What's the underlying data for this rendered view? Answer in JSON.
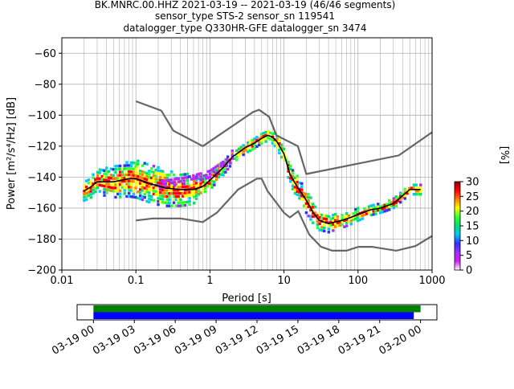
{
  "chart_data": [
    {
      "type": "heatmap",
      "title_lines": [
        "BK.MNRC.00.HHZ   2021-03-19 -- 2021-03-19  (46/46 segments)",
        "sensor_type STS-2 sensor_sn 119541",
        "datalogger_type Q330HR-GFE datalogger_sn 3474"
      ],
      "xlabel": "Period [s]",
      "ylabel": "Power [m²/s⁴/Hz] [dB]",
      "x_scale": "log",
      "xlim": [
        0.01,
        1000
      ],
      "ylim": [
        -200,
        -50
      ],
      "x_ticks": [
        0.01,
        0.1,
        1,
        10,
        100,
        1000
      ],
      "x_tick_labels": [
        "0.01",
        "0.1",
        "1",
        "10",
        "100",
        "1000"
      ],
      "y_ticks": [
        -200,
        -180,
        -160,
        -140,
        -120,
        -100,
        -80,
        -60
      ],
      "y_tick_labels": [
        "−200",
        "−180",
        "−160",
        "−140",
        "−120",
        "−100",
        "−80",
        "−60"
      ],
      "grid": true,
      "noise_models": [
        {
          "model": "high-noise",
          "color": "#666666",
          "points": [
            [
              0.1,
              -91
            ],
            [
              0.22,
              -97
            ],
            [
              0.32,
              -110
            ],
            [
              0.8,
              -120
            ],
            [
              3.8,
              -98
            ],
            [
              4.6,
              -96.5
            ],
            [
              6.3,
              -101
            ],
            [
              7.9,
              -113
            ],
            [
              15.4,
              -120
            ],
            [
              20,
              -138
            ],
            [
              354.8,
              -126
            ],
            [
              1000,
              -111
            ]
          ]
        },
        {
          "model": "low-noise",
          "color": "#666666",
          "points": [
            [
              0.1,
              -168
            ],
            [
              0.17,
              -166.7
            ],
            [
              0.4,
              -166.7
            ],
            [
              0.8,
              -169
            ],
            [
              1.24,
              -163
            ],
            [
              2.4,
              -148
            ],
            [
              4.3,
              -141
            ],
            [
              5,
              -141
            ],
            [
              6,
              -149
            ],
            [
              10,
              -163
            ],
            [
              12,
              -166
            ],
            [
              15.6,
              -162
            ],
            [
              21.9,
              -177
            ],
            [
              31.6,
              -185
            ],
            [
              45,
              -187.5
            ],
            [
              70,
              -187.5
            ],
            [
              101,
              -185
            ],
            [
              154,
              -185
            ],
            [
              328,
              -187.5
            ],
            [
              600,
              -184.5
            ],
            [
              1000,
              -178
            ]
          ]
        }
      ],
      "mode_curve": {
        "color": "#000000",
        "points": [
          [
            0.02,
            -149
          ],
          [
            0.025,
            -146
          ],
          [
            0.03,
            -143
          ],
          [
            0.05,
            -143
          ],
          [
            0.08,
            -141
          ],
          [
            0.1,
            -141
          ],
          [
            0.15,
            -144
          ],
          [
            0.25,
            -147
          ],
          [
            0.4,
            -148
          ],
          [
            0.6,
            -148
          ],
          [
            0.8,
            -146
          ],
          [
            1,
            -142
          ],
          [
            1.5,
            -134
          ],
          [
            2,
            -127
          ],
          [
            3,
            -121
          ],
          [
            4,
            -118
          ],
          [
            5,
            -115
          ],
          [
            6,
            -113
          ],
          [
            7,
            -114
          ],
          [
            8,
            -117
          ],
          [
            10,
            -125
          ],
          [
            12,
            -138
          ],
          [
            15,
            -146
          ],
          [
            20,
            -155
          ],
          [
            25,
            -163
          ],
          [
            30,
            -168
          ],
          [
            40,
            -170
          ],
          [
            60,
            -168
          ],
          [
            80,
            -166
          ],
          [
            100,
            -164
          ],
          [
            150,
            -161
          ],
          [
            200,
            -160
          ],
          [
            300,
            -157
          ],
          [
            400,
            -152
          ],
          [
            500,
            -148
          ],
          [
            700,
            -148
          ]
        ]
      },
      "heatmap_spread": {
        "points": [
          [
            0.02,
            6
          ],
          [
            0.05,
            10
          ],
          [
            0.1,
            12
          ],
          [
            0.2,
            12
          ],
          [
            0.5,
            10
          ],
          [
            1,
            6
          ],
          [
            2,
            4
          ],
          [
            5,
            3
          ],
          [
            10,
            5
          ],
          [
            15,
            7
          ],
          [
            20,
            8
          ],
          [
            30,
            6
          ],
          [
            50,
            5
          ],
          [
            100,
            4
          ],
          [
            200,
            3
          ],
          [
            500,
            3
          ],
          [
            700,
            3
          ]
        ]
      },
      "upper_branch": {
        "points": [
          [
            0.2,
            -145
          ],
          [
            0.5,
            -142
          ],
          [
            1,
            -138
          ],
          [
            2,
            -128
          ]
        ]
      },
      "colorbar": {
        "label": "[%]",
        "range": [
          0,
          30
        ],
        "ticks": [
          0,
          5,
          10,
          15,
          20,
          25,
          30
        ],
        "colors": [
          "#ffffff",
          "#d020f0",
          "#9b30ff",
          "#3030ff",
          "#00c8ff",
          "#00e070",
          "#30ff30",
          "#ffff00",
          "#ff8000",
          "#ff0000",
          "#8b0000"
        ]
      }
    },
    {
      "type": "timeline",
      "xlabel": "",
      "tick_labels": [
        "03-19 00",
        "03-19 03",
        "03-19 06",
        "03-19 09",
        "03-19 12",
        "03-19 15",
        "03-19 18",
        "03-19 21",
        "03-20 00"
      ],
      "tick_hours": [
        0,
        3,
        6,
        9,
        12,
        15,
        18,
        21,
        24
      ],
      "xlim_hours": [
        -1.2,
        25.2
      ],
      "bars": [
        {
          "name": "available",
          "color": "#008000",
          "start_hour": 0,
          "end_hour": 24
        },
        {
          "name": "used",
          "color": "#0000ff",
          "start_hour": 0,
          "end_hour": 23.5
        }
      ]
    }
  ]
}
